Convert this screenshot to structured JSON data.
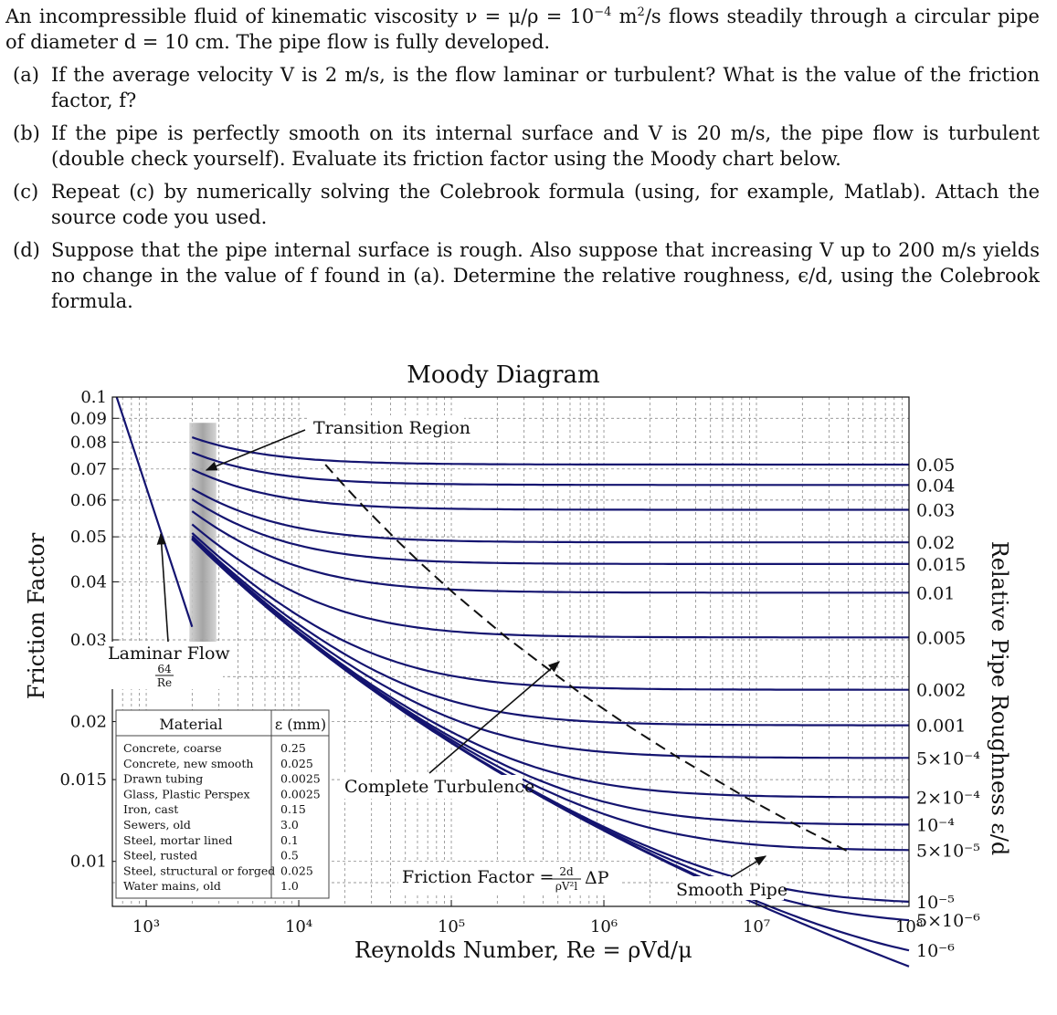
{
  "problem": {
    "intro_a": "An incompressible fluid of kinematic viscosity ν = μ/ρ = 10",
    "intro_exp": "−4",
    "intro_b": " m",
    "intro_sq": "2",
    "intro_c": "/s flows steadily through a circular pipe of diameter d = 10 cm. The pipe flow is fully developed.",
    "parts": [
      {
        "label": "(a)",
        "text": "If the average velocity V is 2 m/s, is the flow laminar or turbulent? What is the value of the friction factor, f?"
      },
      {
        "label": "(b)",
        "text": "If the pipe is perfectly smooth on its internal surface and V is 20 m/s, the pipe flow is turbulent (double check yourself). Evaluate its friction factor using the Moody chart below."
      },
      {
        "label": "(c)",
        "text": "Repeat (c) by numerically solving the Colebrook formula (using, for example, Matlab). Attach the source code you used."
      },
      {
        "label": "(d)",
        "text": "Suppose that the pipe internal surface is rough. Also suppose that increasing V up to 200 m/s yields no change in the value of f found in (a). Determine the relative roughness, ϵ/d, using the Colebrook formula."
      }
    ]
  },
  "chart_data": {
    "type": "line",
    "title": "Moody Diagram",
    "xlabel": "Reynolds Number, Re = ρVd/μ",
    "ylabel": "Friction Factor",
    "y2label": "Relative Pipe Roughness ε/d",
    "xscale": "log",
    "yscale": "log",
    "xlim": [
      600,
      100000000
    ],
    "ylim": [
      0.008,
      0.1
    ],
    "x_ticks": [
      {
        "value": 1000,
        "label": "10³"
      },
      {
        "value": 10000,
        "label": "10⁴"
      },
      {
        "value": 100000,
        "label": "10⁵"
      },
      {
        "value": 1000000,
        "label": "10⁶"
      },
      {
        "value": 10000000,
        "label": "10⁷"
      },
      {
        "value": 100000000,
        "label": "10⁸"
      }
    ],
    "y_ticks": [
      {
        "value": 0.1,
        "label": "0.1"
      },
      {
        "value": 0.09,
        "label": "0.09"
      },
      {
        "value": 0.08,
        "label": "0.08"
      },
      {
        "value": 0.07,
        "label": "0.07"
      },
      {
        "value": 0.06,
        "label": "0.06"
      },
      {
        "value": 0.05,
        "label": "0.05"
      },
      {
        "value": 0.04,
        "label": "0.04"
      },
      {
        "value": 0.03,
        "label": "0.03"
      },
      {
        "value": 0.02,
        "label": "0.02"
      },
      {
        "value": 0.015,
        "label": "0.015"
      },
      {
        "value": 0.01,
        "label": "0.01"
      }
    ],
    "roughness_curves": [
      {
        "eps": 0.05,
        "label": "0.05"
      },
      {
        "eps": 0.04,
        "label": "0.04"
      },
      {
        "eps": 0.03,
        "label": "0.03"
      },
      {
        "eps": 0.02,
        "label": "0.02"
      },
      {
        "eps": 0.015,
        "label": "0.015"
      },
      {
        "eps": 0.01,
        "label": "0.01"
      },
      {
        "eps": 0.005,
        "label": "0.005"
      },
      {
        "eps": 0.002,
        "label": "0.002"
      },
      {
        "eps": 0.001,
        "label": "0.001"
      },
      {
        "eps": 0.0005,
        "label": "5×10⁻⁴"
      },
      {
        "eps": 0.0002,
        "label": "2×10⁻⁴"
      },
      {
        "eps": 0.0001,
        "label": "10⁻⁴"
      },
      {
        "eps": 5e-05,
        "label": "5×10⁻⁵"
      },
      {
        "eps": 1e-05,
        "label": "10⁻⁵"
      },
      {
        "eps": 5e-06,
        "label": "5×10⁻⁶"
      },
      {
        "eps": 1e-06,
        "label": "10⁻⁶"
      }
    ],
    "turbulent_re_start": 2000,
    "turbulent_re_end": 100000000,
    "laminar": {
      "re_start": 640,
      "re_end": 2000,
      "label": "Laminar Flow",
      "formula_num": "64",
      "formula_den": "Re"
    },
    "colors": {
      "curve": "#141470",
      "grid": "#777777",
      "transition": "#999999",
      "text": "#111111"
    },
    "annotations": {
      "transition": "Transition Region",
      "complete": "Complete Turbulence",
      "smooth": "Smooth Pipe",
      "ff_label": "Friction Factor =",
      "ff_num": "2d",
      "ff_den": "ρV²l",
      "ff_tail": "ΔP"
    },
    "materials": {
      "header_material": "Material",
      "header_eps": "ε (mm)",
      "rows": [
        {
          "name": "Concrete, coarse",
          "eps": "0.25"
        },
        {
          "name": "Concrete, new smooth",
          "eps": "0.025"
        },
        {
          "name": "Drawn tubing",
          "eps": "0.0025"
        },
        {
          "name": "Glass, Plastic Perspex",
          "eps": "0.0025"
        },
        {
          "name": "Iron, cast",
          "eps": "0.15"
        },
        {
          "name": "Sewers, old",
          "eps": "3.0"
        },
        {
          "name": "Steel, mortar lined",
          "eps": "0.1"
        },
        {
          "name": "Steel, rusted",
          "eps": "0.5"
        },
        {
          "name": "Steel, structural or forged",
          "eps": "0.025"
        },
        {
          "name": "Water mains, old",
          "eps": "1.0"
        }
      ]
    }
  }
}
